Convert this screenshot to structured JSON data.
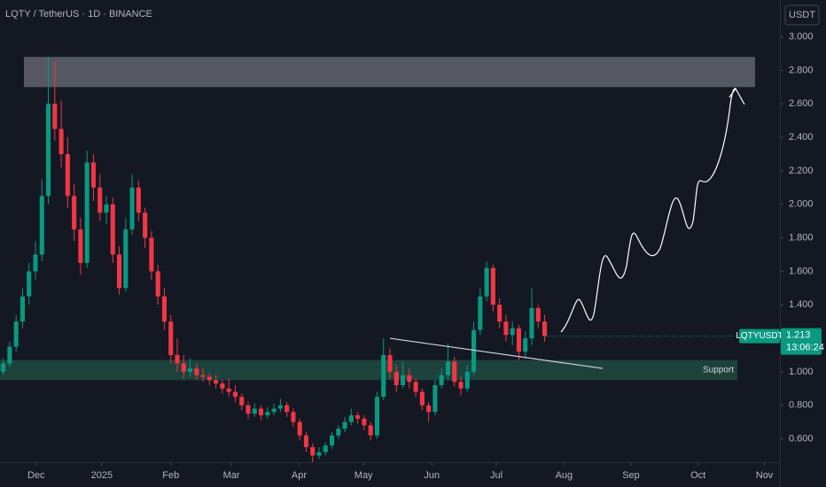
{
  "chart_data": {
    "type": "candlestick",
    "title": "LQTY / TetherUS · 1D · BINANCE",
    "currency": "USDT",
    "symbol": "LQTYUSDT",
    "countdown": "13:06:24",
    "up_color": "#089981",
    "down_color": "#f23645",
    "open": [
      1.0,
      1.05,
      1.15,
      1.3,
      1.45,
      1.6,
      1.7,
      2.05,
      2.6,
      2.45,
      2.3,
      2.05,
      1.85,
      1.65,
      2.25,
      2.1,
      1.95,
      2.0,
      1.7,
      1.5,
      1.85,
      2.1,
      1.95,
      1.8,
      1.6,
      1.45,
      1.3,
      1.1,
      1.05,
      1.0,
      1.02,
      0.98,
      0.97,
      0.95,
      0.93,
      0.9,
      0.88,
      0.85,
      0.8,
      0.75,
      0.78,
      0.74,
      0.76,
      0.78,
      0.8,
      0.76,
      0.7,
      0.62,
      0.55,
      0.5,
      0.52,
      0.56,
      0.62,
      0.66,
      0.7,
      0.74,
      0.72,
      0.68,
      0.62,
      0.85,
      1.1,
      1.0,
      0.92,
      0.98,
      0.94,
      0.88,
      0.8,
      0.76,
      0.92,
      0.98,
      1.06,
      0.94,
      0.9,
      1.0,
      1.25,
      1.45,
      1.62,
      1.4,
      1.3,
      1.22,
      1.26,
      1.12,
      1.2,
      1.38,
      1.3
    ],
    "high": [
      1.08,
      1.18,
      1.34,
      1.5,
      1.65,
      1.78,
      2.15,
      2.88,
      2.85,
      2.62,
      2.4,
      2.12,
      1.92,
      2.32,
      2.3,
      2.18,
      2.05,
      2.04,
      1.75,
      1.92,
      2.18,
      2.14,
      1.98,
      1.84,
      1.64,
      1.5,
      1.34,
      1.2,
      1.1,
      1.08,
      1.05,
      1.02,
      0.99,
      0.98,
      0.95,
      0.96,
      0.92,
      0.87,
      0.82,
      0.81,
      0.8,
      0.79,
      0.81,
      0.84,
      0.82,
      0.78,
      0.72,
      0.64,
      0.57,
      0.55,
      0.58,
      0.64,
      0.68,
      0.73,
      0.78,
      0.76,
      0.74,
      0.7,
      0.88,
      1.2,
      1.14,
      1.04,
      1.06,
      1.02,
      0.96,
      0.9,
      0.82,
      0.95,
      1.02,
      1.17,
      1.09,
      0.97,
      1.04,
      1.3,
      1.5,
      1.66,
      1.64,
      1.44,
      1.34,
      1.3,
      1.28,
      1.24,
      1.5,
      1.4,
      1.34
    ],
    "low": [
      0.98,
      1.03,
      1.12,
      1.26,
      1.4,
      1.55,
      1.66,
      2.0,
      2.38,
      2.22,
      1.98,
      1.78,
      1.58,
      1.62,
      2.02,
      1.9,
      1.88,
      1.65,
      1.46,
      1.48,
      1.82,
      1.9,
      1.74,
      1.55,
      1.4,
      1.25,
      1.05,
      1.0,
      0.96,
      0.97,
      0.95,
      0.94,
      0.92,
      0.9,
      0.87,
      0.85,
      0.82,
      0.77,
      0.72,
      0.73,
      0.71,
      0.72,
      0.74,
      0.76,
      0.73,
      0.67,
      0.59,
      0.52,
      0.46,
      0.48,
      0.5,
      0.54,
      0.6,
      0.64,
      0.68,
      0.69,
      0.65,
      0.59,
      0.6,
      0.83,
      0.96,
      0.88,
      0.9,
      0.9,
      0.85,
      0.77,
      0.7,
      0.74,
      0.9,
      0.95,
      0.91,
      0.86,
      0.88,
      0.98,
      1.22,
      1.42,
      1.36,
      1.26,
      1.18,
      1.16,
      1.07,
      1.08,
      1.16,
      1.26,
      1.18
    ],
    "close": [
      1.05,
      1.15,
      1.3,
      1.45,
      1.6,
      1.7,
      2.05,
      2.6,
      2.45,
      2.3,
      2.05,
      1.85,
      1.65,
      2.25,
      2.1,
      1.95,
      2.0,
      1.7,
      1.5,
      1.85,
      2.1,
      1.95,
      1.8,
      1.6,
      1.45,
      1.3,
      1.1,
      1.05,
      1.0,
      1.02,
      0.98,
      0.97,
      0.95,
      0.93,
      0.9,
      0.88,
      0.85,
      0.8,
      0.75,
      0.78,
      0.74,
      0.76,
      0.78,
      0.8,
      0.76,
      0.7,
      0.62,
      0.55,
      0.5,
      0.52,
      0.56,
      0.62,
      0.66,
      0.7,
      0.74,
      0.72,
      0.68,
      0.62,
      0.85,
      1.1,
      1.0,
      0.92,
      0.98,
      0.94,
      0.88,
      0.8,
      0.76,
      0.92,
      0.98,
      1.06,
      0.94,
      0.9,
      1.0,
      1.25,
      1.45,
      1.62,
      1.4,
      1.3,
      1.22,
      1.26,
      1.12,
      1.2,
      1.38,
      1.3,
      1.213
    ],
    "xlim": [
      -0.5,
      120.5
    ],
    "xticks": [
      {
        "value": 5.1,
        "label": "Dec"
      },
      {
        "value": 15.3,
        "label": "2025"
      },
      {
        "value": 26.0,
        "label": "Feb"
      },
      {
        "value": 35.4,
        "label": "Mar"
      },
      {
        "value": 45.9,
        "label": "Apr"
      },
      {
        "value": 55.9,
        "label": "May"
      },
      {
        "value": 66.5,
        "label": "Jun"
      },
      {
        "value": 76.5,
        "label": "Jul"
      },
      {
        "value": 87.0,
        "label": "Aug"
      },
      {
        "value": 97.4,
        "label": "Sep"
      },
      {
        "value": 107.8,
        "label": "Oct"
      },
      {
        "value": 118.1,
        "label": "Nov"
      }
    ],
    "ylim": [
      0.46,
      3.22
    ],
    "yticks": [
      {
        "value": 0.6,
        "label": "0.600"
      },
      {
        "value": 0.8,
        "label": "0.800"
      },
      {
        "value": 1,
        "label": "1.000"
      },
      {
        "value": 1.2,
        "label": "1.200"
      },
      {
        "value": 1.4,
        "label": "1.400"
      },
      {
        "value": 1.6,
        "label": "1.600"
      },
      {
        "value": 1.8,
        "label": "1.800"
      },
      {
        "value": 2,
        "label": "2.000"
      },
      {
        "value": 2.2,
        "label": "2.200"
      },
      {
        "value": 2.4,
        "label": "2.400"
      },
      {
        "value": 2.6,
        "label": "2.600"
      },
      {
        "value": 2.8,
        "label": "2.800"
      },
      {
        "value": 3,
        "label": "3.000"
      }
    ],
    "zones": [
      {
        "low": 2.7,
        "high": 2.88,
        "color": "#6b6e78"
      },
      {
        "low": 0.95,
        "high": 1.07,
        "color": "#1e4a40",
        "label": "Support"
      }
    ],
    "trendline": {
      "x": [
        60,
        93
      ],
      "y": [
        1.2,
        1.02
      ]
    }
  }
}
